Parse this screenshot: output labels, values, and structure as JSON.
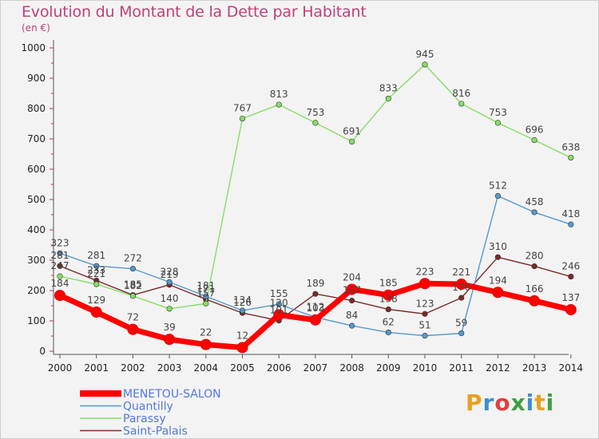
{
  "header": {
    "title": "Evolution du Montant de la Dette par Habitant",
    "unit": "(en €)"
  },
  "logo": {
    "text": "Proxiti",
    "colors": [
      "#e8a020",
      "#3c90d0",
      "#e04040",
      "#40a040",
      "#3c90d0",
      "#e8a020",
      "#40a040"
    ]
  },
  "chart_data": {
    "type": "line",
    "title": "Evolution du Montant de la Dette par Habitant",
    "ylabel": "(en €)",
    "xlabel": "",
    "x": [
      "2000",
      "2001",
      "2002",
      "2003",
      "2004",
      "2005",
      "2006",
      "2007",
      "2008",
      "2009",
      "2010",
      "2011",
      "2012",
      "2013",
      "2014"
    ],
    "ylim": [
      0,
      1000
    ],
    "yticks": [
      0,
      100,
      200,
      300,
      400,
      500,
      600,
      700,
      800,
      900,
      1000
    ],
    "grid": false,
    "legend": "bottom-left",
    "series": [
      {
        "name": "Saint-Palais",
        "color": "#7a2a2a",
        "values": [
          281,
          233,
          185,
          219,
          171,
          126,
          101,
          189,
          167,
          138,
          123,
          176,
          310,
          280,
          246
        ]
      },
      {
        "name": "Parassy",
        "color": "#88dd66",
        "values": [
          247,
          221,
          182,
          140,
          157,
          767,
          813,
          753,
          691,
          833,
          945,
          816,
          753,
          696,
          638
        ]
      },
      {
        "name": "Quantilly",
        "color": "#5599cc",
        "values": [
          323,
          281,
          272,
          228,
          181,
          134,
          155,
          112,
          84,
          62,
          51,
          59,
          512,
          458,
          418
        ]
      },
      {
        "name": "MENETOU-SALON",
        "color": "#ff0000",
        "values": [
          184,
          129,
          72,
          39,
          22,
          12,
          120,
          103,
          204,
          185,
          223,
          221,
          194,
          166,
          137
        ]
      }
    ]
  }
}
